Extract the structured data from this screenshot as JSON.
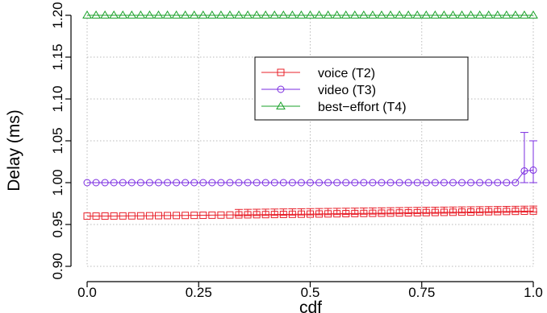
{
  "chart_data": {
    "type": "line",
    "title": "",
    "xlabel": "cdf",
    "ylabel": "Delay (ms)",
    "xlim": [
      0.0,
      1.0
    ],
    "ylim": [
      0.9,
      1.2
    ],
    "x_ticks": [
      "0.0",
      "0.25",
      "0.5",
      "0.75",
      "1.0"
    ],
    "y_ticks": [
      "0.90",
      "0.95",
      "1.00",
      "1.05",
      "1.10",
      "1.15",
      "1.20"
    ],
    "grid": true,
    "legend_position": "center-right",
    "series": [
      {
        "name": "voice (T2)",
        "color": "#e8202a",
        "marker": "square",
        "x_start": 0.0,
        "x_end": 1.0,
        "n_points": 51,
        "y_start": 0.96,
        "y_end": 0.966,
        "error_bars": {
          "from_x": 0.34,
          "upper": 0.968,
          "upper_end": 0.972,
          "lower_offset": 0.001
        }
      },
      {
        "name": "video (T3)",
        "color": "#7a2be0",
        "marker": "circle",
        "x_start": 0.0,
        "x_end": 1.0,
        "n_points": 51,
        "y_base": 1.0,
        "tail_values": [
          {
            "x": 0.98,
            "y": 1.014,
            "err_low": 1.0,
            "err_high": 1.06
          },
          {
            "x": 1.0,
            "y": 1.015,
            "err_low": 1.0,
            "err_high": 1.05
          }
        ]
      },
      {
        "name": "best−effort (T4)",
        "color": "#1aa02a",
        "marker": "triangle",
        "x_start": 0.0,
        "x_end": 1.0,
        "n_points": 51,
        "y_base": 1.2
      }
    ]
  }
}
